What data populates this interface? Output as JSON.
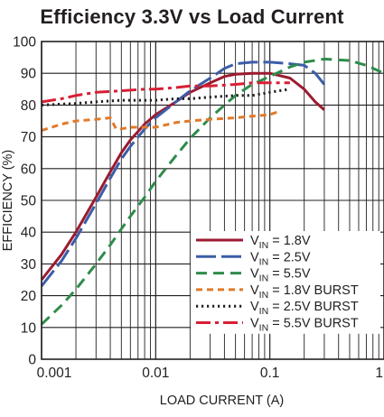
{
  "chart_data": {
    "type": "line",
    "title": "Efficiency 3.3V vs Load Current",
    "xlabel": "LOAD CURRENT (A)",
    "ylabel": "EFFICIENCY (%)",
    "xscale": "log",
    "xlim": [
      0.001,
      1
    ],
    "ylim": [
      0,
      100
    ],
    "grid": true,
    "legend_position": "bottom-right",
    "x_ticks": [
      "0.001",
      "0.01",
      "0.1",
      "1"
    ],
    "y_ticks": [
      "0",
      "10",
      "20",
      "30",
      "40",
      "50",
      "60",
      "70",
      "80",
      "90",
      "100"
    ],
    "series": [
      {
        "label_main": "V",
        "label_sub": "IN",
        "label_rest": " = 1.8V",
        "color": "#9b1b30",
        "dash": "solid",
        "x": [
          0.001,
          0.0015,
          0.002,
          0.003,
          0.004,
          0.005,
          0.006,
          0.008,
          0.01,
          0.015,
          0.02,
          0.03,
          0.04,
          0.05,
          0.07,
          0.1,
          0.15,
          0.2,
          0.25,
          0.3
        ],
        "y": [
          25,
          33,
          40,
          51,
          59,
          65,
          69,
          74,
          77,
          81,
          84,
          87,
          89,
          89.7,
          90,
          90,
          88.5,
          85,
          81,
          78.5
        ]
      },
      {
        "label_main": "V",
        "label_sub": "IN",
        "label_rest": " = 2.5V",
        "color": "#3c5ea8",
        "dash": "longdash",
        "x": [
          0.001,
          0.0015,
          0.002,
          0.003,
          0.004,
          0.005,
          0.006,
          0.008,
          0.01,
          0.015,
          0.02,
          0.03,
          0.04,
          0.05,
          0.07,
          0.1,
          0.15,
          0.2,
          0.25,
          0.3
        ],
        "y": [
          23,
          31,
          38,
          49,
          57,
          63,
          67,
          72.5,
          76,
          81,
          84.5,
          88.5,
          91.5,
          93,
          93.5,
          93.5,
          93,
          92.5,
          90,
          86.5
        ]
      },
      {
        "label_main": "V",
        "label_sub": "IN",
        "label_rest": " = 5.5V",
        "color": "#2e8c4a",
        "dash": "dash",
        "x": [
          0.001,
          0.0015,
          0.002,
          0.003,
          0.004,
          0.005,
          0.006,
          0.008,
          0.01,
          0.015,
          0.02,
          0.03,
          0.05,
          0.07,
          0.1,
          0.15,
          0.2,
          0.3,
          0.5,
          0.7,
          1.0
        ],
        "y": [
          11,
          17,
          22,
          30,
          36,
          41,
          45,
          51,
          56,
          64,
          69.5,
          76,
          83,
          86.5,
          89,
          92,
          93.5,
          94.5,
          94,
          92.5,
          90
        ]
      },
      {
        "label_main": "V",
        "label_sub": "IN",
        "label_rest": " = 1.8V BURST",
        "color": "#e07a2a",
        "dash": "shortdash",
        "x": [
          0.001,
          0.0015,
          0.002,
          0.003,
          0.004,
          0.0045,
          0.005,
          0.006,
          0.008,
          0.01,
          0.015,
          0.02,
          0.03,
          0.05,
          0.07,
          0.1,
          0.12
        ],
        "y": [
          72,
          74,
          75,
          75.5,
          76,
          72.5,
          72.5,
          73,
          73,
          73,
          74.5,
          75,
          75.5,
          76,
          76.5,
          77,
          78
        ]
      },
      {
        "label_main": "V",
        "label_sub": "IN",
        "label_rest": " = 2.5V BURST",
        "color": "#231f20",
        "dash": "dot",
        "x": [
          0.001,
          0.002,
          0.003,
          0.005,
          0.008,
          0.01,
          0.015,
          0.02,
          0.03,
          0.05,
          0.07,
          0.1,
          0.12,
          0.15
        ],
        "y": [
          80,
          80.5,
          81,
          81.5,
          81.5,
          81.5,
          82,
          82,
          82.5,
          83,
          83,
          84,
          84.5,
          85
        ]
      },
      {
        "label_main": "V",
        "label_sub": "IN",
        "label_rest": " = 5.5V BURST",
        "color": "#d81f35",
        "dash": "dashdot",
        "x": [
          0.001,
          0.0015,
          0.002,
          0.003,
          0.005,
          0.008,
          0.01,
          0.015,
          0.02,
          0.03,
          0.05,
          0.07,
          0.1,
          0.15
        ],
        "y": [
          81,
          82,
          83,
          84,
          84.5,
          85,
          85,
          85.5,
          86,
          86,
          86.5,
          87,
          87,
          87
        ]
      }
    ]
  }
}
